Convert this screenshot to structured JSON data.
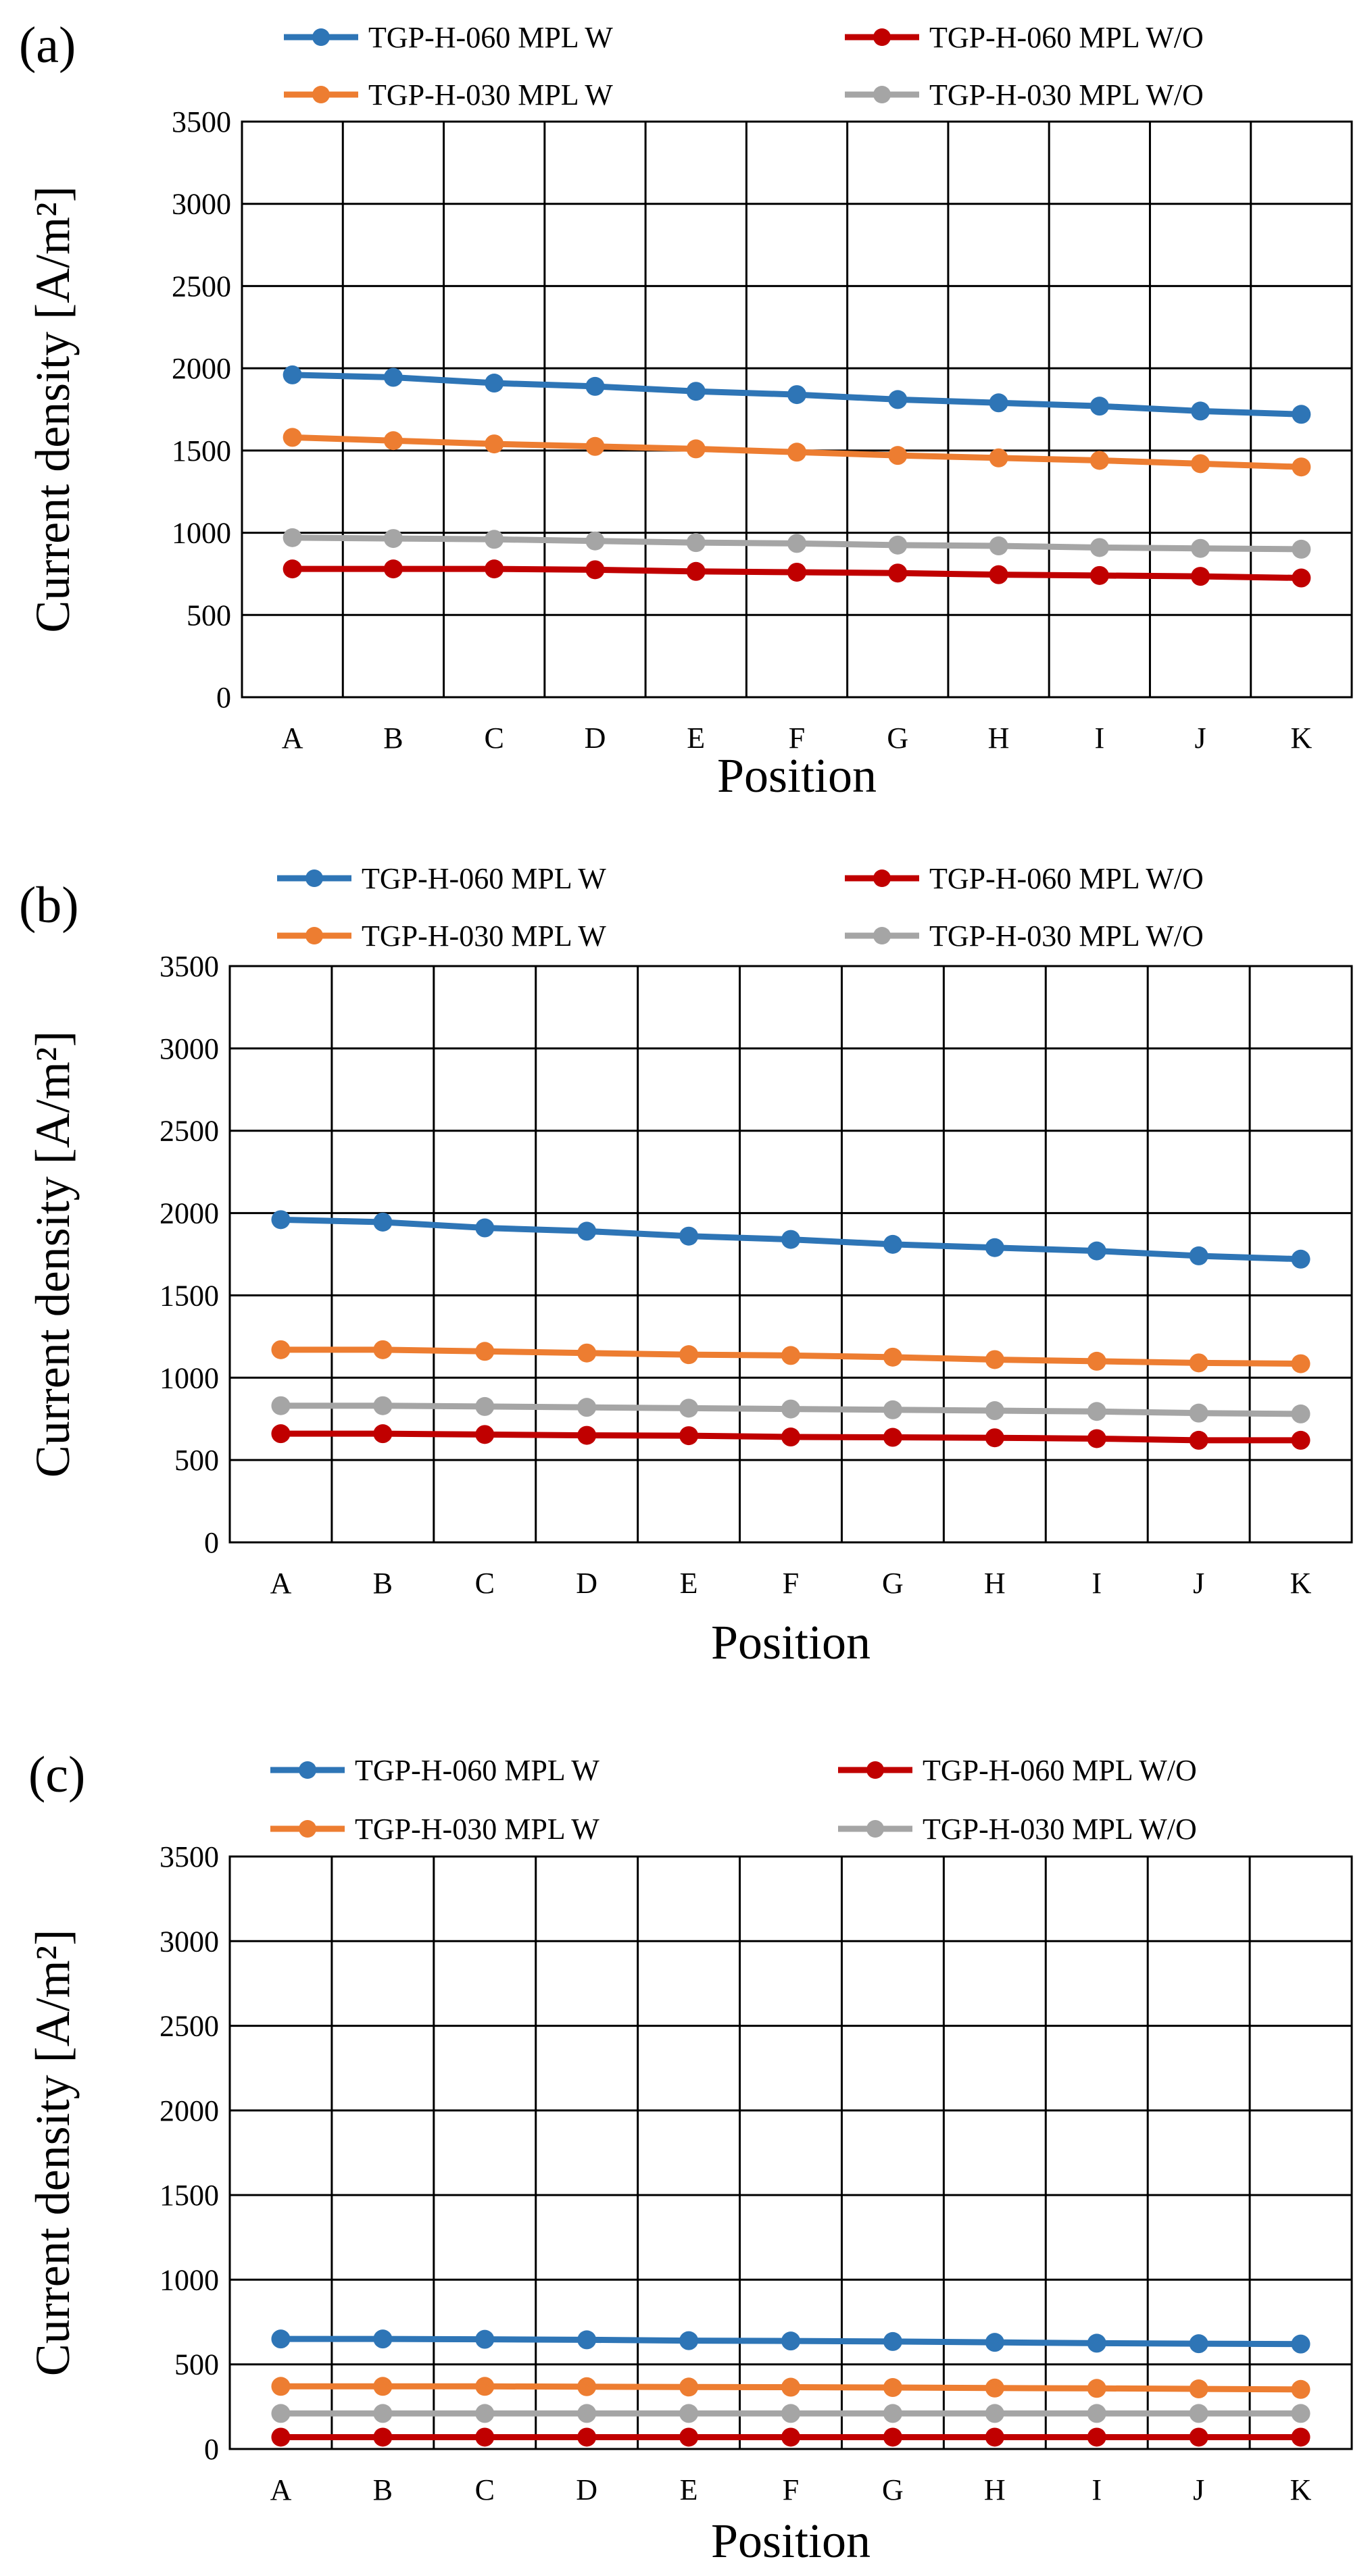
{
  "chart_data": [
    {
      "type": "line",
      "panel_label": "(a)",
      "categories": [
        "A",
        "B",
        "C",
        "D",
        "E",
        "F",
        "G",
        "H",
        "I",
        "J",
        "K"
      ],
      "xlabel": "Position",
      "ylabel": "Current density [A/m²]",
      "ylim": [
        0,
        3500
      ],
      "yticks": [
        0,
        500,
        1000,
        1500,
        2000,
        2500,
        3000,
        3500
      ],
      "grid": true,
      "legend_position": "top",
      "series": [
        {
          "name": "TGP-H-060 MPL W",
          "color": "#2e75b6",
          "values": [
            1960,
            1945,
            1910,
            1890,
            1860,
            1840,
            1810,
            1790,
            1770,
            1740,
            1720
          ]
        },
        {
          "name": "TGP-H-060 MPL W/O",
          "color": "#c00000",
          "values": [
            780,
            780,
            780,
            775,
            765,
            760,
            755,
            745,
            740,
            735,
            725
          ]
        },
        {
          "name": "TGP-H-030 MPL W",
          "color": "#ed7d31",
          "values": [
            1580,
            1560,
            1540,
            1525,
            1510,
            1490,
            1470,
            1455,
            1440,
            1420,
            1400
          ]
        },
        {
          "name": "TGP-H-030 MPL W/O",
          "color": "#a5a5a5",
          "values": [
            970,
            965,
            960,
            950,
            940,
            935,
            925,
            920,
            910,
            905,
            900
          ]
        }
      ]
    },
    {
      "type": "line",
      "panel_label": "(b)",
      "categories": [
        "A",
        "B",
        "C",
        "D",
        "E",
        "F",
        "G",
        "H",
        "I",
        "J",
        "K"
      ],
      "xlabel": "Position",
      "ylabel": "Current density [A/m²]",
      "ylim": [
        0,
        3500
      ],
      "yticks": [
        0,
        500,
        1000,
        1500,
        2000,
        2500,
        3000,
        3500
      ],
      "grid": true,
      "legend_position": "top",
      "series": [
        {
          "name": "TGP-H-060 MPL W",
          "color": "#2e75b6",
          "values": [
            1960,
            1945,
            1910,
            1890,
            1860,
            1840,
            1810,
            1790,
            1770,
            1740,
            1720
          ]
        },
        {
          "name": "TGP-H-060 MPL W/O",
          "color": "#c00000",
          "values": [
            660,
            660,
            655,
            650,
            648,
            640,
            638,
            635,
            630,
            620,
            620
          ]
        },
        {
          "name": "TGP-H-030 MPL W",
          "color": "#ed7d31",
          "values": [
            1170,
            1170,
            1160,
            1150,
            1140,
            1135,
            1125,
            1110,
            1100,
            1090,
            1085
          ]
        },
        {
          "name": "TGP-H-030 MPL W/O",
          "color": "#a5a5a5",
          "values": [
            830,
            830,
            825,
            820,
            815,
            810,
            805,
            800,
            795,
            785,
            780
          ]
        }
      ]
    },
    {
      "type": "line",
      "panel_label": "(c)",
      "categories": [
        "A",
        "B",
        "C",
        "D",
        "E",
        "F",
        "G",
        "H",
        "I",
        "J",
        "K"
      ],
      "xlabel": "Position",
      "ylabel": "Current density [A/m²]",
      "ylim": [
        0,
        3500
      ],
      "yticks": [
        0,
        500,
        1000,
        1500,
        2000,
        2500,
        3000,
        3500
      ],
      "grid": true,
      "legend_position": "top",
      "series": [
        {
          "name": "TGP-H-060 MPL W",
          "color": "#2e75b6",
          "values": [
            650,
            650,
            648,
            645,
            640,
            638,
            635,
            630,
            625,
            622,
            620
          ]
        },
        {
          "name": "TGP-H-060 MPL W/O",
          "color": "#c00000",
          "values": [
            70,
            70,
            70,
            70,
            70,
            70,
            70,
            70,
            70,
            70,
            70
          ]
        },
        {
          "name": "TGP-H-030 MPL W",
          "color": "#ed7d31",
          "values": [
            370,
            370,
            370,
            368,
            366,
            365,
            363,
            360,
            358,
            355,
            352
          ]
        },
        {
          "name": "TGP-H-030 MPL W/O",
          "color": "#a5a5a5",
          "values": [
            210,
            210,
            210,
            210,
            210,
            210,
            210,
            210,
            210,
            210,
            210
          ]
        }
      ]
    }
  ]
}
